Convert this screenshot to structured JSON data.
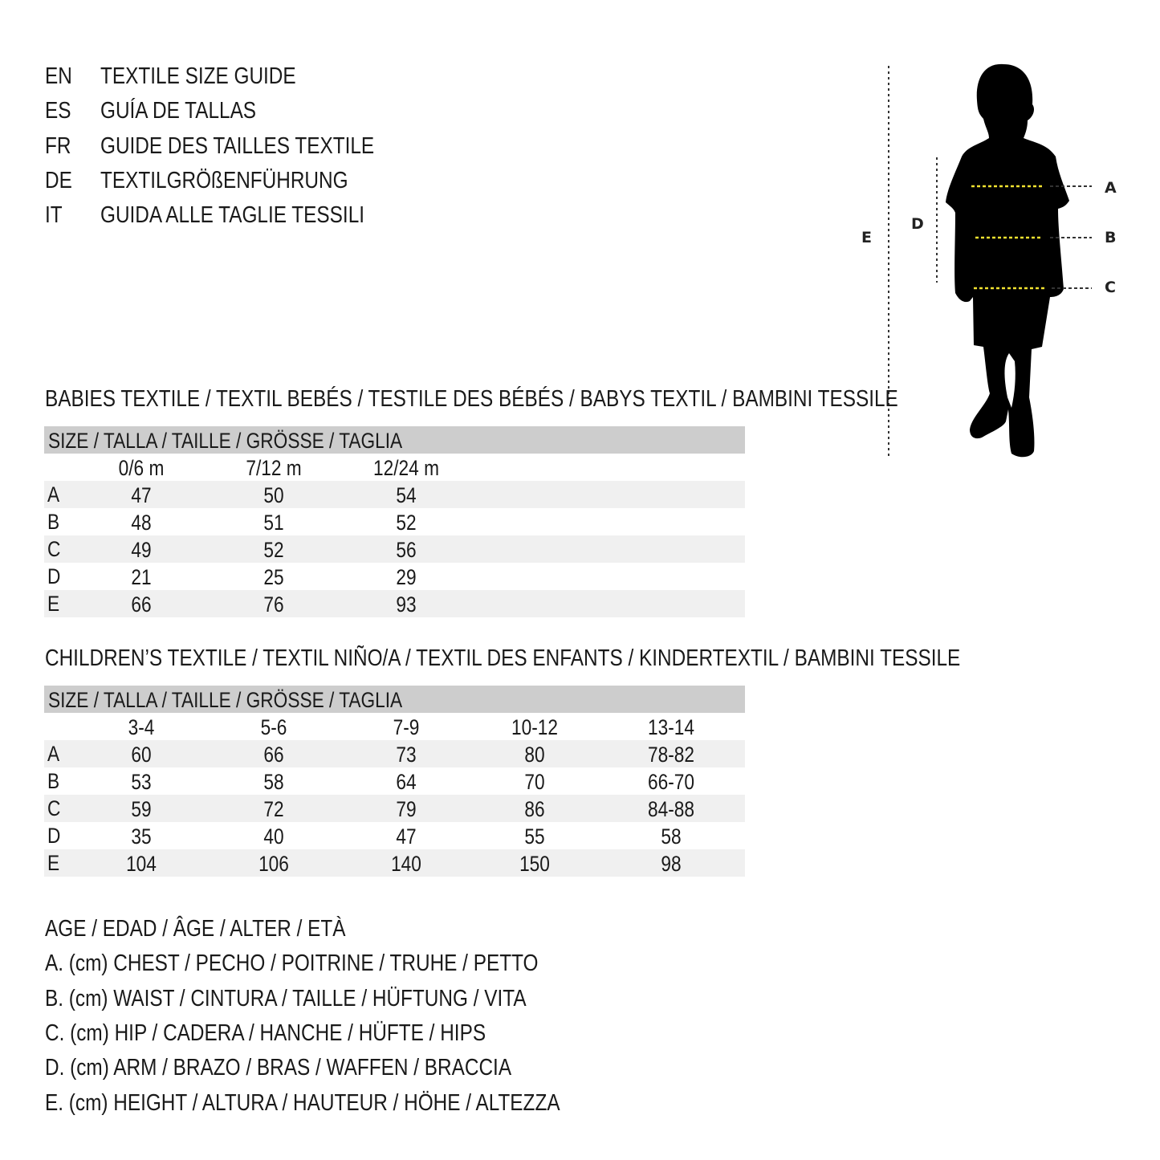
{
  "titles": [
    {
      "code": "EN",
      "text": "TEXTILE SIZE GUIDE"
    },
    {
      "code": "ES",
      "text": "GUÍA DE TALLAS"
    },
    {
      "code": "FR",
      "text": "GUIDE DES TAILLES TEXTILE"
    },
    {
      "code": "DE",
      "text": "TEXTILGRÖßENFÜHRUNG"
    },
    {
      "code": "IT",
      "text": "GUIDA ALLE TAGLIE TESSILI"
    }
  ],
  "figure": {
    "labels": [
      "A",
      "B",
      "C",
      "D",
      "E"
    ],
    "accent": "#f2e230"
  },
  "babies": {
    "heading": "BABIES TEXTILE / TEXTIL BEBÉS / TESTILE DES BÉBÉS / BABYS TEXTIL / BAMBINI TESSILE",
    "size_header": "SIZE / TALLA / TAILLE / GRÖSSE / TAGLIA",
    "columns": [
      "0/6 m",
      "7/12 m",
      "12/24 m"
    ],
    "rows": [
      {
        "label": "A",
        "values": [
          "47",
          "50",
          "54"
        ]
      },
      {
        "label": "B",
        "values": [
          "48",
          "51",
          "52"
        ]
      },
      {
        "label": "C",
        "values": [
          "49",
          "52",
          "56"
        ]
      },
      {
        "label": "D",
        "values": [
          "21",
          "25",
          "29"
        ]
      },
      {
        "label": "E",
        "values": [
          "66",
          "76",
          "93"
        ]
      }
    ]
  },
  "children": {
    "heading": "CHILDREN’S TEXTILE / TEXTIL NIÑO/A / TEXTIL DES ENFANTS / KINDERTEXTIL / BAMBINI TESSILE",
    "size_header": "SIZE / TALLA / TAILLE / GRÖSSE / TAGLIA",
    "columns": [
      "3-4",
      "5-6",
      "7-9",
      "10-12",
      "13-14"
    ],
    "rows": [
      {
        "label": "A",
        "values": [
          "60",
          "66",
          "73",
          "80",
          "78-82"
        ]
      },
      {
        "label": "B",
        "values": [
          "53",
          "58",
          "64",
          "70",
          "66-70"
        ]
      },
      {
        "label": "C",
        "values": [
          "59",
          "72",
          "79",
          "86",
          "84-88"
        ]
      },
      {
        "label": "D",
        "values": [
          "35",
          "40",
          "47",
          "55",
          "58"
        ]
      },
      {
        "label": "E",
        "values": [
          "104",
          "106",
          "140",
          "150",
          "98"
        ]
      }
    ]
  },
  "legend": [
    "AGE / EDAD / ÂGE / ALTER / ETÀ",
    "A. (cm) CHEST / PECHO / POITRINE / TRUHE / PETTO",
    "B. (cm) WAIST / CINTURA / TAILLE / HÜFTUNG / VITA",
    "C. (cm) HIP / CADERA / HANCHE / HÜFTE / HIPS",
    "D. (cm) ARM / BRAZO / BRAS / WAFFEN / BRACCIA",
    "E. (cm) HEIGHT / ALTURA / HAUTEUR / HÖHE / ALTEZZA"
  ]
}
